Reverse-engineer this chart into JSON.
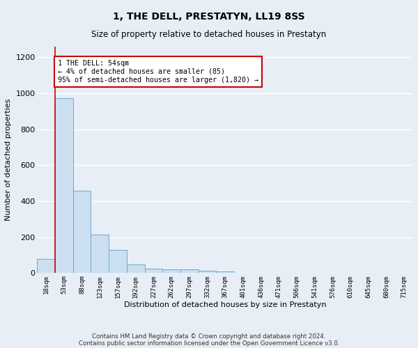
{
  "title": "1, THE DELL, PRESTATYN, LL19 8SS",
  "subtitle": "Size of property relative to detached houses in Prestatyn",
  "xlabel": "Distribution of detached houses by size in Prestatyn",
  "ylabel": "Number of detached properties",
  "bar_color": "#ccdff0",
  "bar_edge_color": "#6aaad4",
  "categories": [
    "18sqm",
    "53sqm",
    "88sqm",
    "123sqm",
    "157sqm",
    "192sqm",
    "227sqm",
    "262sqm",
    "297sqm",
    "332sqm",
    "367sqm",
    "401sqm",
    "436sqm",
    "471sqm",
    "506sqm",
    "541sqm",
    "576sqm",
    "610sqm",
    "645sqm",
    "680sqm",
    "715sqm"
  ],
  "values": [
    80,
    975,
    460,
    215,
    130,
    48,
    25,
    22,
    20,
    12,
    10,
    0,
    0,
    0,
    0,
    0,
    0,
    0,
    0,
    0,
    0
  ],
  "ylim": [
    0,
    1260
  ],
  "yticks": [
    0,
    200,
    400,
    600,
    800,
    1000,
    1200
  ],
  "annotation_text": "1 THE DELL: 54sqm\n← 4% of detached houses are smaller (85)\n95% of semi-detached houses are larger (1,820) →",
  "vline_x_index": 1,
  "annotation_box_color": "#ffffff",
  "annotation_box_edge_color": "#cc0000",
  "footer_line1": "Contains HM Land Registry data © Crown copyright and database right 2024.",
  "footer_line2": "Contains public sector information licensed under the Open Government Licence v3.0.",
  "background_color": "#e8eef5",
  "grid_color": "#ffffff"
}
